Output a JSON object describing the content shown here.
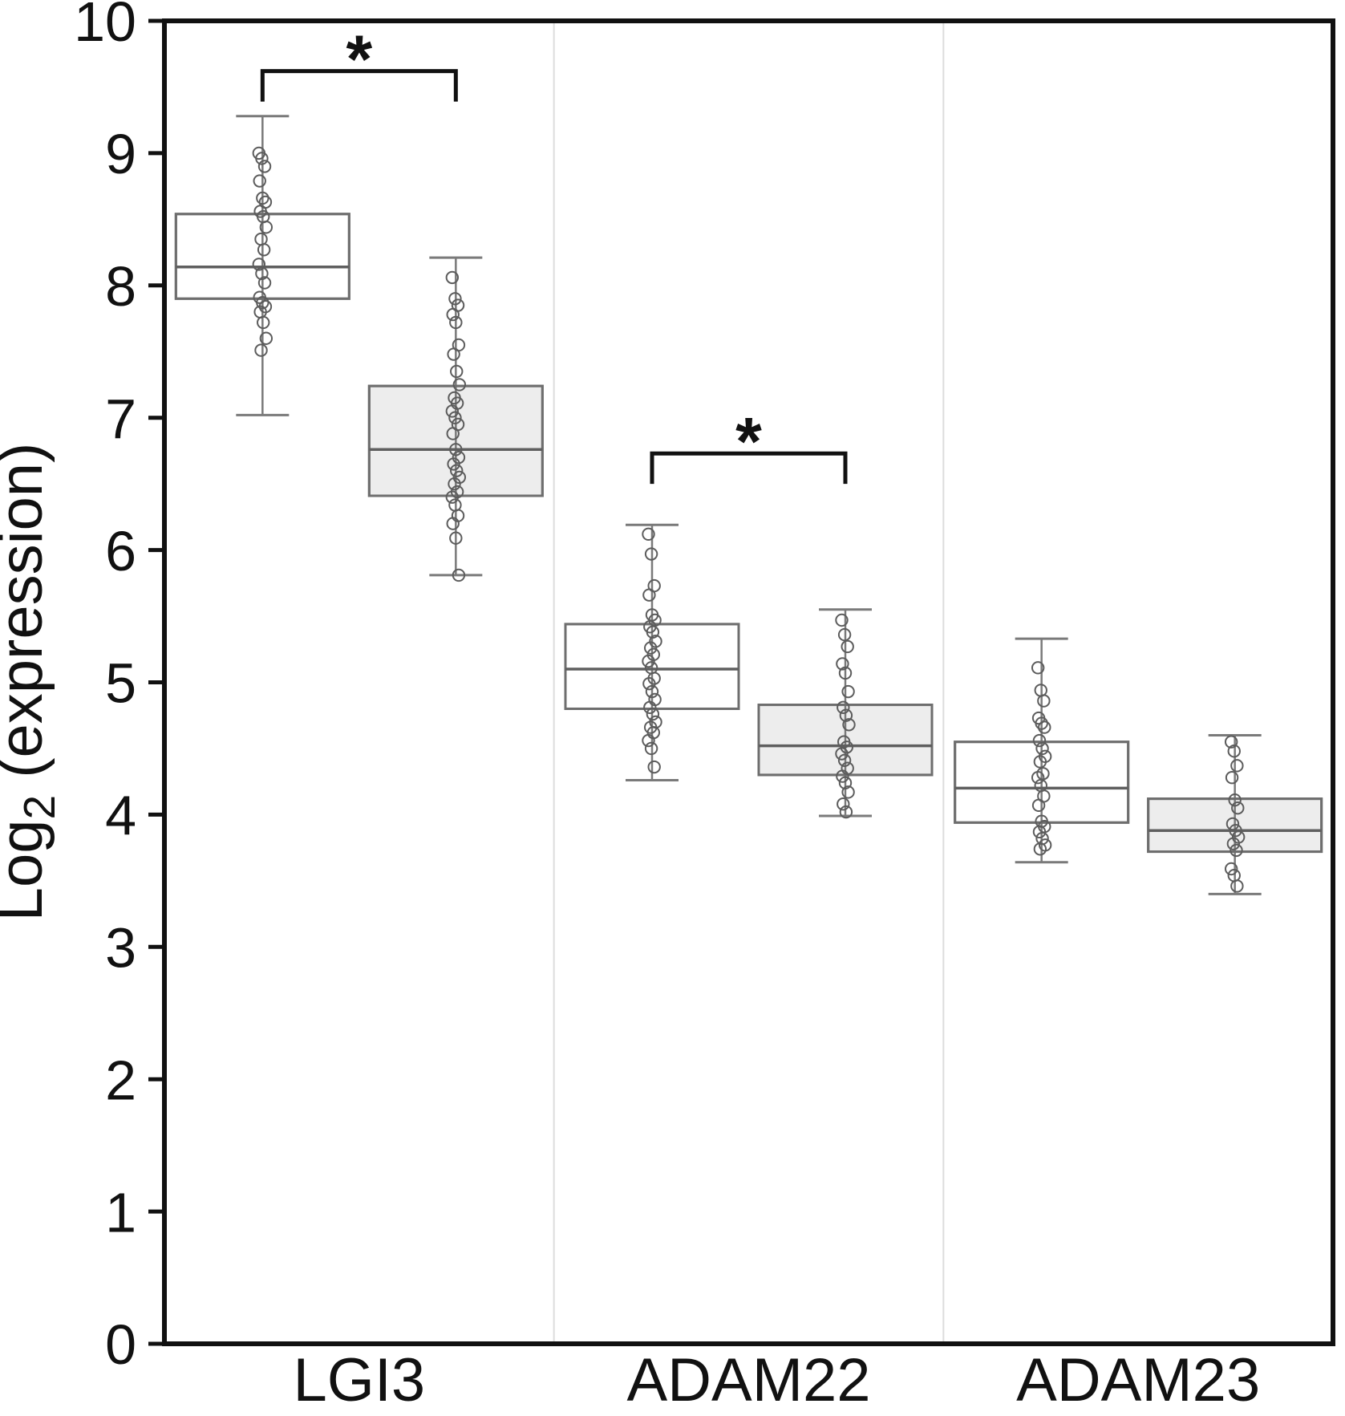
{
  "figure": {
    "background": "#ffffff",
    "ylabel": {
      "prefix": "Log",
      "subscript": "2",
      "suffix": " (expression)"
    }
  },
  "chart_data": {
    "type": "boxplot",
    "title": "",
    "xlabel": "",
    "ylabel": "Log2 (expression)",
    "ylim": [
      0,
      10
    ],
    "yticks": [
      0,
      1,
      2,
      3,
      4,
      5,
      6,
      7,
      8,
      9,
      10
    ],
    "grid": false,
    "legend": "none",
    "categories": [
      "LGI3",
      "ADAM22",
      "ADAM23"
    ],
    "series": [
      {
        "name": "left-white-box",
        "fill": "#ffffff",
        "boxes": [
          {
            "category": "LGI3",
            "whisker_low": 7.02,
            "q1": 7.9,
            "median": 8.14,
            "q3": 8.54,
            "whisker_high": 9.28,
            "points": [
              9.0,
              8.96,
              8.9,
              8.79,
              8.66,
              8.63,
              8.56,
              8.52,
              8.44,
              8.35,
              8.27,
              8.16,
              8.09,
              8.02,
              7.91,
              7.87,
              7.84,
              7.8,
              7.72,
              7.6,
              7.51
            ]
          },
          {
            "category": "ADAM22",
            "whisker_low": 4.26,
            "q1": 4.8,
            "median": 5.1,
            "q3": 5.44,
            "whisker_high": 6.19,
            "points": [
              6.12,
              5.97,
              5.73,
              5.66,
              5.51,
              5.47,
              5.42,
              5.38,
              5.31,
              5.26,
              5.21,
              5.16,
              5.11,
              5.03,
              4.99,
              4.93,
              4.87,
              4.81,
              4.76,
              4.7,
              4.66,
              4.62,
              4.56,
              4.5,
              4.36
            ]
          },
          {
            "category": "ADAM23",
            "whisker_low": 3.64,
            "q1": 3.94,
            "median": 4.2,
            "q3": 4.55,
            "whisker_high": 5.33,
            "points": [
              5.11,
              4.94,
              4.86,
              4.73,
              4.69,
              4.66,
              4.56,
              4.5,
              4.44,
              4.4,
              4.31,
              4.28,
              4.22,
              4.14,
              4.07,
              3.95,
              3.91,
              3.87,
              3.82,
              3.77,
              3.74
            ]
          }
        ]
      },
      {
        "name": "right-gray-box",
        "fill": "#ededed",
        "boxes": [
          {
            "category": "LGI3",
            "whisker_low": 5.81,
            "q1": 6.41,
            "median": 6.76,
            "q3": 7.24,
            "whisker_high": 8.21,
            "points": [
              8.06,
              7.9,
              7.85,
              7.78,
              7.72,
              7.55,
              7.48,
              7.35,
              7.25,
              7.15,
              7.11,
              7.05,
              7.0,
              6.95,
              6.88,
              6.76,
              6.7,
              6.65,
              6.6,
              6.55,
              6.5,
              6.44,
              6.4,
              6.34,
              6.26,
              6.2,
              6.09,
              5.81
            ]
          },
          {
            "category": "ADAM22",
            "whisker_low": 3.99,
            "q1": 4.3,
            "median": 4.52,
            "q3": 4.83,
            "whisker_high": 5.55,
            "points": [
              5.47,
              5.36,
              5.27,
              5.14,
              5.07,
              4.93,
              4.81,
              4.75,
              4.68,
              4.55,
              4.51,
              4.46,
              4.41,
              4.35,
              4.29,
              4.24,
              4.17,
              4.08,
              4.02
            ]
          },
          {
            "category": "ADAM23",
            "whisker_low": 3.4,
            "q1": 3.72,
            "median": 3.88,
            "q3": 4.12,
            "whisker_high": 4.6,
            "points": [
              4.55,
              4.48,
              4.37,
              4.28,
              4.11,
              4.05,
              3.93,
              3.88,
              3.83,
              3.78,
              3.73,
              3.59,
              3.54,
              3.46
            ]
          }
        ]
      }
    ],
    "significance": [
      {
        "category": "LGI3",
        "label": "*",
        "y_top": 9.62,
        "y_tip": 9.39
      },
      {
        "category": "ADAM22",
        "label": "*",
        "y_top": 6.73,
        "y_tip": 6.5
      }
    ]
  },
  "colors": {
    "axis": "#111111",
    "text": "#111111",
    "box_stroke": "#6e6e6e",
    "median_stroke": "#5f5f5f",
    "whisker_stroke": "#7a7a7a",
    "point_stroke": "#5c5c5c",
    "divider": "#dcdcdc",
    "gray_fill": "#ededed",
    "white_fill": "#ffffff",
    "bracket": "#111111"
  }
}
